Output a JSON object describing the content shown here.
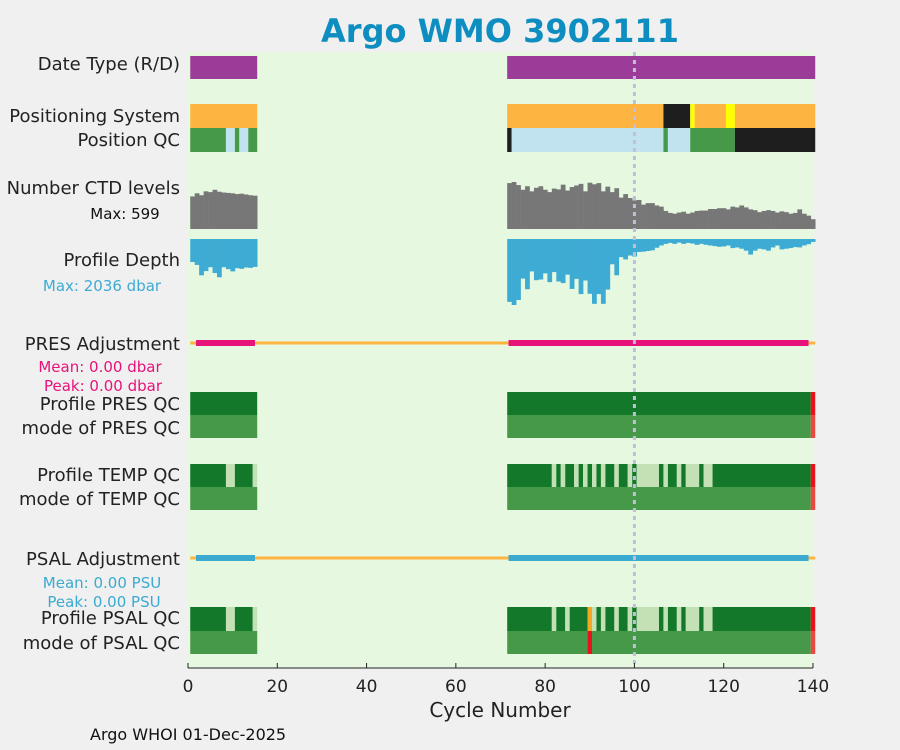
{
  "chart_data": {
    "type": "heatmap",
    "title": "Argo WMO 3902111",
    "xlabel": "Cycle Number",
    "xlim": [
      0,
      140
    ],
    "xticks": [
      0,
      20,
      40,
      60,
      80,
      100,
      120,
      140
    ],
    "marker_cycle": 100,
    "footer": "Argo WHOI 01-Dec-2025",
    "colors": {
      "background": "#e6f8e0",
      "realtime": "#9b3c98",
      "gps": "#fdb441",
      "black": "#1e1e1e",
      "yellow": "#ffff00",
      "green": "#47994a",
      "lightblue": "#c0e3ef",
      "darkgreen": "#14782a",
      "palegreen": "#c3e1b5",
      "red": "#e8131c",
      "lightred": "#e84a40",
      "orange": "#f5a623",
      "gray": "#777777",
      "depth": "#3dabd3",
      "pres": "#e8127b",
      "psal": "#3aaad0"
    },
    "rows": {
      "date_type": {
        "label": "Date Type (R/D)",
        "segments": [
          {
            "from": 0.5,
            "to": 15.5,
            "color": "realtime"
          },
          {
            "from": 71.5,
            "to": 140.5,
            "color": "realtime"
          }
        ]
      },
      "positioning_system": {
        "label": "Positioning System",
        "segments": [
          {
            "from": 0.5,
            "to": 15.5,
            "color": "gps"
          },
          {
            "from": 71.5,
            "to": 106.5,
            "color": "gps"
          },
          {
            "from": 106.5,
            "to": 112.5,
            "color": "black"
          },
          {
            "from": 112.5,
            "to": 113.5,
            "color": "yellow"
          },
          {
            "from": 113.5,
            "to": 120.5,
            "color": "gps"
          },
          {
            "from": 120.5,
            "to": 122.5,
            "color": "yellow"
          },
          {
            "from": 122.5,
            "to": 140.5,
            "color": "gps"
          }
        ]
      },
      "position_qc": {
        "label": "Position QC",
        "segments": [
          {
            "from": 0.5,
            "to": 8.5,
            "color": "green"
          },
          {
            "from": 8.5,
            "to": 10.5,
            "color": "lightblue"
          },
          {
            "from": 10.5,
            "to": 11.5,
            "color": "green"
          },
          {
            "from": 11.5,
            "to": 13.5,
            "color": "lightblue"
          },
          {
            "from": 13.5,
            "to": 15.5,
            "color": "green"
          },
          {
            "from": 71.5,
            "to": 72.5,
            "color": "black"
          },
          {
            "from": 72.5,
            "to": 106.5,
            "color": "lightblue"
          },
          {
            "from": 106.5,
            "to": 107.5,
            "color": "green"
          },
          {
            "from": 107.5,
            "to": 112.5,
            "color": "lightblue"
          },
          {
            "from": 112.5,
            "to": 122.5,
            "color": "green"
          },
          {
            "from": 122.5,
            "to": 140.5,
            "color": "black"
          }
        ]
      },
      "ctd_levels": {
        "label": "Number CTD levels",
        "annotation": "Max: 599",
        "max": 599,
        "cycles": [
          1,
          2,
          3,
          4,
          5,
          6,
          7,
          8,
          9,
          10,
          11,
          12,
          13,
          14,
          15,
          72,
          73,
          74,
          75,
          76,
          77,
          78,
          79,
          80,
          81,
          82,
          83,
          84,
          85,
          86,
          87,
          88,
          89,
          90,
          91,
          92,
          93,
          94,
          95,
          96,
          97,
          98,
          99,
          100,
          101,
          102,
          103,
          104,
          105,
          106,
          107,
          108,
          109,
          110,
          111,
          112,
          113,
          114,
          115,
          116,
          117,
          118,
          119,
          120,
          121,
          122,
          123,
          124,
          125,
          126,
          127,
          128,
          129,
          130,
          131,
          132,
          133,
          134,
          135,
          136,
          137,
          138,
          139,
          140
        ],
        "values": [
          415,
          455,
          430,
          480,
          470,
          500,
          475,
          465,
          460,
          455,
          445,
          450,
          440,
          430,
          425,
          585,
          599,
          560,
          500,
          545,
          480,
          525,
          545,
          500,
          470,
          515,
          505,
          565,
          490,
          535,
          555,
          575,
          480,
          590,
          570,
          585,
          480,
          540,
          470,
          520,
          400,
          445,
          395,
          365,
          370,
          310,
          330,
          330,
          300,
          285,
          230,
          205,
          195,
          210,
          220,
          195,
          210,
          230,
          235,
          235,
          255,
          255,
          265,
          265,
          250,
          285,
          275,
          300,
          275,
          250,
          240,
          215,
          230,
          240,
          230,
          210,
          225,
          215,
          195,
          205,
          250,
          195,
          170,
          125
        ]
      },
      "profile_depth": {
        "label": "Profile Depth",
        "annotation": "Max: 2036 dbar",
        "max": 2036,
        "cycles": [
          1,
          2,
          3,
          4,
          5,
          6,
          7,
          8,
          9,
          10,
          11,
          12,
          13,
          14,
          15,
          72,
          73,
          74,
          75,
          76,
          77,
          78,
          79,
          80,
          81,
          82,
          83,
          84,
          85,
          86,
          87,
          88,
          89,
          90,
          91,
          92,
          93,
          94,
          95,
          96,
          97,
          98,
          99,
          100,
          101,
          102,
          103,
          104,
          105,
          106,
          107,
          108,
          109,
          110,
          111,
          112,
          113,
          114,
          115,
          116,
          117,
          118,
          119,
          120,
          121,
          122,
          123,
          124,
          125,
          126,
          127,
          128,
          129,
          130,
          131,
          132,
          133,
          134,
          135,
          136,
          137,
          138,
          139,
          140
        ],
        "values": [
          710,
          800,
          1120,
          990,
          870,
          1050,
          1180,
          870,
          930,
          1000,
          900,
          920,
          880,
          890,
          860,
          1940,
          2036,
          1880,
          1220,
          1550,
          1000,
          1270,
          1250,
          1060,
          1330,
          1020,
          1310,
          1360,
          1100,
          1540,
          1230,
          1700,
          1280,
          1690,
          2000,
          1700,
          2000,
          1560,
          780,
          1120,
          560,
          630,
          510,
          540,
          400,
          390,
          370,
          350,
          270,
          200,
          150,
          120,
          150,
          110,
          150,
          120,
          140,
          180,
          150,
          180,
          200,
          220,
          240,
          230,
          200,
          280,
          260,
          300,
          360,
          480,
          360,
          300,
          320,
          360,
          260,
          200,
          320,
          300,
          280,
          250,
          260,
          200,
          160,
          90
        ]
      },
      "pres_adjustment": {
        "label": "PRES Adjustment",
        "mean_text": "Mean: 0.00 dbar",
        "peak_text": "Peak: 0.00 dbar",
        "mean": 0.0,
        "peak": 0.0,
        "line_segments": [
          {
            "from": 0.5,
            "to": 140.5,
            "color": "gps"
          }
        ],
        "bar_segments": [
          {
            "from": 2,
            "to": 15,
            "color": "pres"
          },
          {
            "from": 72,
            "to": 139,
            "color": "pres"
          }
        ]
      },
      "profile_pres_qc": {
        "label": "Profile PRES QC",
        "segments": [
          {
            "from": 0.5,
            "to": 15.5,
            "color": "darkgreen"
          },
          {
            "from": 71.5,
            "to": 139.5,
            "color": "darkgreen"
          },
          {
            "from": 139.5,
            "to": 140.5,
            "color": "red"
          }
        ]
      },
      "mode_pres_qc": {
        "label": "mode of PRES QC",
        "segments": [
          {
            "from": 0.5,
            "to": 15.5,
            "color": "green"
          },
          {
            "from": 71.5,
            "to": 139.5,
            "color": "green"
          },
          {
            "from": 139.5,
            "to": 140.5,
            "color": "lightred"
          }
        ]
      },
      "profile_temp_qc": {
        "label": "Profile TEMP QC",
        "segments": [
          {
            "from": 0.5,
            "to": 8.5,
            "color": "darkgreen"
          },
          {
            "from": 8.5,
            "to": 10.5,
            "color": "palegreen"
          },
          {
            "from": 10.5,
            "to": 14.5,
            "color": "darkgreen"
          },
          {
            "from": 14.5,
            "to": 15.5,
            "color": "palegreen"
          },
          {
            "from": 71.5,
            "to": 81.5,
            "color": "darkgreen"
          },
          {
            "from": 81.5,
            "to": 82.5,
            "color": "palegreen"
          },
          {
            "from": 82.5,
            "to": 83.5,
            "color": "darkgreen"
          },
          {
            "from": 83.5,
            "to": 84.5,
            "color": "palegreen"
          },
          {
            "from": 84.5,
            "to": 86.5,
            "color": "darkgreen"
          },
          {
            "from": 86.5,
            "to": 87.5,
            "color": "palegreen"
          },
          {
            "from": 87.5,
            "to": 88.5,
            "color": "darkgreen"
          },
          {
            "from": 88.5,
            "to": 89.5,
            "color": "palegreen"
          },
          {
            "from": 89.5,
            "to": 90.5,
            "color": "darkgreen"
          },
          {
            "from": 90.5,
            "to": 91.5,
            "color": "palegreen"
          },
          {
            "from": 91.5,
            "to": 92.5,
            "color": "darkgreen"
          },
          {
            "from": 92.5,
            "to": 93.5,
            "color": "palegreen"
          },
          {
            "from": 93.5,
            "to": 95.5,
            "color": "darkgreen"
          },
          {
            "from": 95.5,
            "to": 96.5,
            "color": "palegreen"
          },
          {
            "from": 96.5,
            "to": 98.5,
            "color": "darkgreen"
          },
          {
            "from": 98.5,
            "to": 99.5,
            "color": "palegreen"
          },
          {
            "from": 99.5,
            "to": 100.5,
            "color": "darkgreen"
          },
          {
            "from": 100.5,
            "to": 105.5,
            "color": "palegreen"
          },
          {
            "from": 105.5,
            "to": 106.5,
            "color": "darkgreen"
          },
          {
            "from": 106.5,
            "to": 107.5,
            "color": "palegreen"
          },
          {
            "from": 107.5,
            "to": 109.5,
            "color": "darkgreen"
          },
          {
            "from": 109.5,
            "to": 110.5,
            "color": "palegreen"
          },
          {
            "from": 110.5,
            "to": 111.5,
            "color": "darkgreen"
          },
          {
            "from": 111.5,
            "to": 114.5,
            "color": "palegreen"
          },
          {
            "from": 114.5,
            "to": 115.5,
            "color": "darkgreen"
          },
          {
            "from": 115.5,
            "to": 117.5,
            "color": "palegreen"
          },
          {
            "from": 117.5,
            "to": 139.5,
            "color": "darkgreen"
          },
          {
            "from": 139.5,
            "to": 140.5,
            "color": "red"
          }
        ]
      },
      "mode_temp_qc": {
        "label": "mode of TEMP QC",
        "segments": [
          {
            "from": 0.5,
            "to": 15.5,
            "color": "green"
          },
          {
            "from": 71.5,
            "to": 139.5,
            "color": "green"
          },
          {
            "from": 139.5,
            "to": 140.5,
            "color": "lightred"
          }
        ]
      },
      "psal_adjustment": {
        "label": "PSAL Adjustment",
        "mean_text": "Mean: 0.00 PSU",
        "peak_text": "Peak: 0.00 PSU",
        "mean": 0.0,
        "peak": 0.0,
        "line_segments": [
          {
            "from": 0.5,
            "to": 140.5,
            "color": "gps"
          }
        ],
        "bar_segments": [
          {
            "from": 2,
            "to": 15,
            "color": "psal"
          },
          {
            "from": 72,
            "to": 139,
            "color": "psal"
          }
        ]
      },
      "profile_psal_qc": {
        "label": "Profile PSAL QC",
        "segments": [
          {
            "from": 0.5,
            "to": 8.5,
            "color": "darkgreen"
          },
          {
            "from": 8.5,
            "to": 10.5,
            "color": "palegreen"
          },
          {
            "from": 10.5,
            "to": 14.5,
            "color": "darkgreen"
          },
          {
            "from": 14.5,
            "to": 15.5,
            "color": "palegreen"
          },
          {
            "from": 71.5,
            "to": 81.5,
            "color": "darkgreen"
          },
          {
            "from": 81.5,
            "to": 82.5,
            "color": "palegreen"
          },
          {
            "from": 82.5,
            "to": 84.5,
            "color": "darkgreen"
          },
          {
            "from": 84.5,
            "to": 85.5,
            "color": "palegreen"
          },
          {
            "from": 85.5,
            "to": 89.5,
            "color": "darkgreen"
          },
          {
            "from": 89.5,
            "to": 90.5,
            "color": "orange"
          },
          {
            "from": 90.5,
            "to": 91.5,
            "color": "palegreen"
          },
          {
            "from": 91.5,
            "to": 92.5,
            "color": "darkgreen"
          },
          {
            "from": 92.5,
            "to": 93.5,
            "color": "palegreen"
          },
          {
            "from": 93.5,
            "to": 95.5,
            "color": "darkgreen"
          },
          {
            "from": 95.5,
            "to": 96.5,
            "color": "palegreen"
          },
          {
            "from": 96.5,
            "to": 98.5,
            "color": "darkgreen"
          },
          {
            "from": 98.5,
            "to": 99.5,
            "color": "palegreen"
          },
          {
            "from": 99.5,
            "to": 100.5,
            "color": "darkgreen"
          },
          {
            "from": 100.5,
            "to": 105.5,
            "color": "palegreen"
          },
          {
            "from": 105.5,
            "to": 106.5,
            "color": "darkgreen"
          },
          {
            "from": 106.5,
            "to": 107.5,
            "color": "palegreen"
          },
          {
            "from": 107.5,
            "to": 109.5,
            "color": "darkgreen"
          },
          {
            "from": 109.5,
            "to": 110.5,
            "color": "palegreen"
          },
          {
            "from": 110.5,
            "to": 111.5,
            "color": "darkgreen"
          },
          {
            "from": 111.5,
            "to": 114.5,
            "color": "palegreen"
          },
          {
            "from": 114.5,
            "to": 115.5,
            "color": "darkgreen"
          },
          {
            "from": 115.5,
            "to": 117.5,
            "color": "palegreen"
          },
          {
            "from": 117.5,
            "to": 139.5,
            "color": "darkgreen"
          },
          {
            "from": 139.5,
            "to": 140.5,
            "color": "red"
          }
        ]
      },
      "mode_psal_qc": {
        "label": "mode of PSAL QC",
        "segments": [
          {
            "from": 0.5,
            "to": 15.5,
            "color": "green"
          },
          {
            "from": 71.5,
            "to": 89.5,
            "color": "green"
          },
          {
            "from": 89.5,
            "to": 90.5,
            "color": "red"
          },
          {
            "from": 90.5,
            "to": 139.5,
            "color": "green"
          },
          {
            "from": 139.5,
            "to": 140.5,
            "color": "lightred"
          }
        ]
      }
    }
  }
}
